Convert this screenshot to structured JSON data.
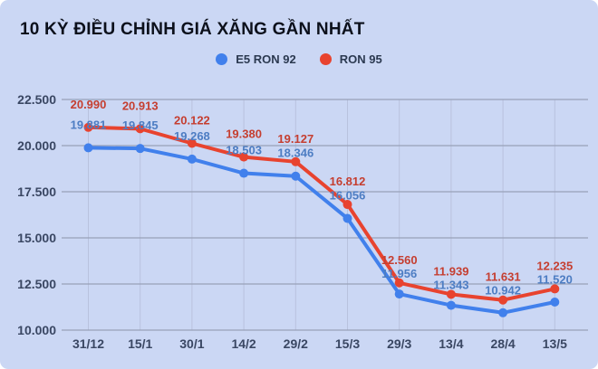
{
  "title": "10 KỲ ĐIỀU CHỈNH GIÁ XĂNG GẦN NHẤT",
  "legend": [
    {
      "label": "E5 RON 92",
      "color": "#4180ec"
    },
    {
      "label": "RON 95",
      "color": "#e8432f"
    }
  ],
  "chart_data": {
    "type": "line",
    "title": "10 KỲ ĐIỀU CHỈNH GIÁ XĂNG GẦN NHẤT",
    "categories": [
      "31/12",
      "15/1",
      "30/1",
      "14/2",
      "29/2",
      "15/3",
      "29/3",
      "13/4",
      "28/4",
      "13/5"
    ],
    "series": [
      {
        "name": "E5 RON 92",
        "color": "#4180ec",
        "label_color": "#4d7dc3",
        "values": [
          19881,
          19845,
          19268,
          18503,
          18346,
          16056,
          11956,
          11343,
          10942,
          11520
        ],
        "labels": [
          "19.881",
          "19.845",
          "19.268",
          "18.503",
          "18.346",
          "16.056",
          "11.956",
          "11.343",
          "10.942",
          "11.520"
        ]
      },
      {
        "name": "RON 95",
        "color": "#e8432f",
        "label_color": "#c53e30",
        "values": [
          20990,
          20913,
          20122,
          19380,
          19127,
          16812,
          12560,
          11939,
          11631,
          12235
        ],
        "labels": [
          "20.990",
          "20.913",
          "20.122",
          "19.380",
          "19.127",
          "16.812",
          "12.560",
          "11.939",
          "11.631",
          "12.235"
        ]
      }
    ],
    "y_ticks": {
      "values": [
        10000,
        12500,
        15000,
        17500,
        20000,
        22500
      ],
      "labels": [
        "10.000",
        "12.500",
        "15.000",
        "17.500",
        "20.000",
        "22.500"
      ]
    },
    "ylim": [
      10000,
      22500
    ],
    "grid": true,
    "legend_position": "top",
    "colors": {
      "background": "#cbd7f4",
      "h_gridline": "#98a1b8",
      "v_gridline": "#b8c2de",
      "axis_text": "#3a4763",
      "title_text": "#0c101b"
    }
  }
}
